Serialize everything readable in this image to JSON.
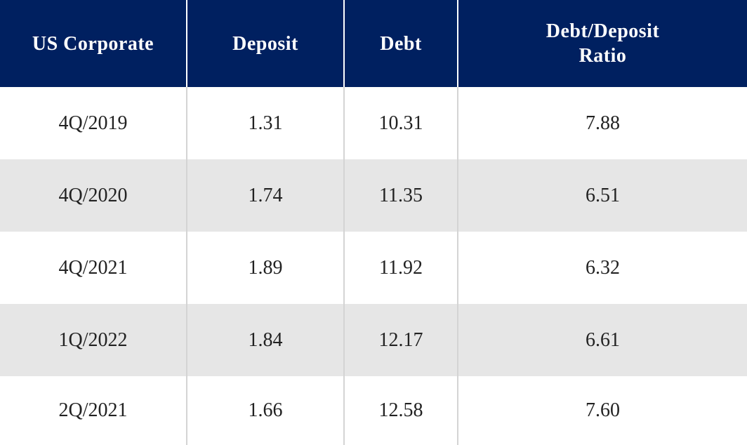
{
  "table": {
    "header": [
      "US Corporate",
      "Deposit",
      "Debt",
      "Debt/Deposit Ratio"
    ],
    "rows": [
      [
        "4Q/2019",
        "1.31",
        "10.31",
        "7.88"
      ],
      [
        "4Q/2020",
        "1.74",
        "11.35",
        "6.51"
      ],
      [
        "4Q/2021",
        "1.89",
        "11.92",
        "6.32"
      ],
      [
        "1Q/2022",
        "1.84",
        "12.17",
        "6.61"
      ],
      [
        "2Q/2021",
        "1.66",
        "12.58",
        "7.60"
      ]
    ]
  }
}
